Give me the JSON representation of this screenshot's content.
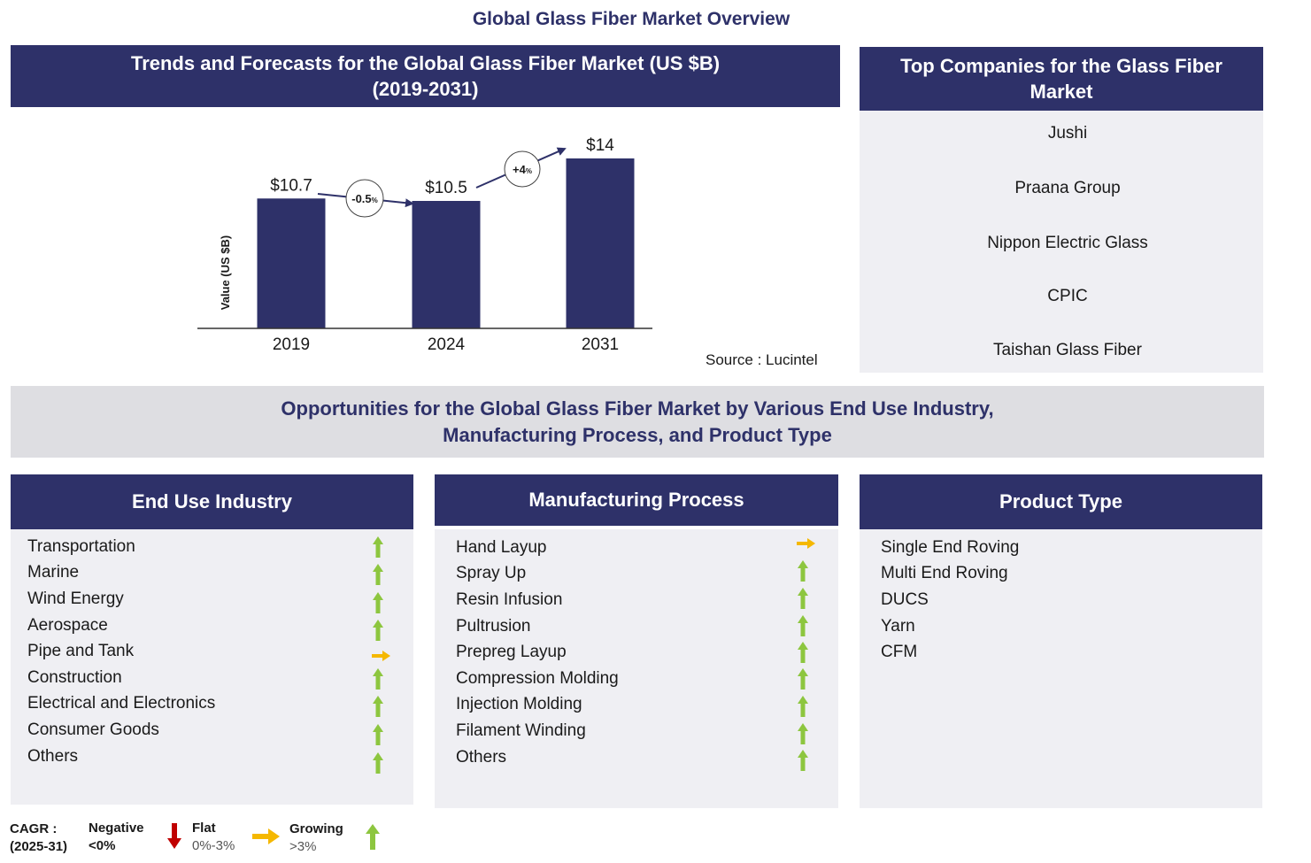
{
  "title": "Global Glass Fiber Market Overview",
  "chart_header": {
    "line1": "Trends and Forecasts for the Global Glass Fiber Market (US $B)",
    "line2": "(2019-2031)"
  },
  "chart_data": {
    "type": "bar",
    "title": "Trends and Forecasts for the Global Glass Fiber Market (US $B) (2019-2031)",
    "categories": [
      "2019",
      "2024",
      "2031"
    ],
    "values": [
      10.7,
      10.5,
      14
    ],
    "data_labels": [
      "$10.7",
      "$10.5",
      "$14"
    ],
    "ylabel": "Value (US $B)",
    "xlabel": "",
    "ylim": [
      0,
      15
    ],
    "grid": false,
    "annotations": [
      {
        "from": "2019",
        "to": "2024",
        "cagr_value": "-0.5",
        "unit": "%"
      },
      {
        "from": "2024",
        "to": "2031",
        "cagr_value": "+4",
        "unit": "%"
      }
    ],
    "bar_color": "#2e3169"
  },
  "source": "Source : Lucintel",
  "companies": {
    "header_line1": "Top Companies for the Glass Fiber",
    "header_line2": "Market",
    "items": [
      "Jushi",
      "Praana Group",
      "Nippon Electric Glass",
      "CPIC",
      "Taishan Glass Fiber"
    ]
  },
  "opportunities": {
    "line1": "Opportunities for the Global Glass Fiber Market by Various End Use Industry,",
    "line2": "Manufacturing Process, and Product Type"
  },
  "end_use": {
    "header": "End Use Industry",
    "items": [
      {
        "label": "Transportation",
        "trend": "growing"
      },
      {
        "label": "Marine",
        "trend": "growing"
      },
      {
        "label": "Wind Energy",
        "trend": "growing"
      },
      {
        "label": "Aerospace",
        "trend": "growing"
      },
      {
        "label": "Pipe and Tank",
        "trend": "flat"
      },
      {
        "label": "Construction",
        "trend": "growing"
      },
      {
        "label": "Electrical and Electronics",
        "trend": "growing"
      },
      {
        "label": "Consumer  Goods",
        "trend": "growing"
      },
      {
        "label": "Others",
        "trend": "growing"
      }
    ]
  },
  "manufacturing": {
    "header": "Manufacturing Process",
    "items": [
      {
        "label": "Hand Layup",
        "trend": "flat"
      },
      {
        "label": "Spray Up",
        "trend": "growing"
      },
      {
        "label": "Resin Infusion",
        "trend": "growing"
      },
      {
        "label": "Pultrusion",
        "trend": "growing"
      },
      {
        "label": "Prepreg Layup",
        "trend": "growing"
      },
      {
        "label": "Compression Molding",
        "trend": "growing"
      },
      {
        "label": "Injection Molding",
        "trend": "growing"
      },
      {
        "label": "Filament Winding",
        "trend": "growing"
      },
      {
        "label": "Others",
        "trend": "growing"
      }
    ]
  },
  "product": {
    "header": "Product Type",
    "items": [
      "Single End Roving",
      "Multi  End  Roving",
      "DUCS",
      "Yarn",
      "CFM"
    ]
  },
  "legend": {
    "title_line1": "CAGR  :",
    "title_line2": "(2025-31)",
    "negative_label": "Negative",
    "negative_range": "<0%",
    "flat_label": "Flat",
    "flat_range": "0%-3%",
    "growing_label": "Growing",
    "growing_range": ">3%"
  },
  "colors": {
    "navy": "#2e3169",
    "grey_panel": "#efeff3",
    "banner": "#dedee2",
    "up": "#8dc63f",
    "flat": "#f5b800",
    "down": "#c00000"
  }
}
